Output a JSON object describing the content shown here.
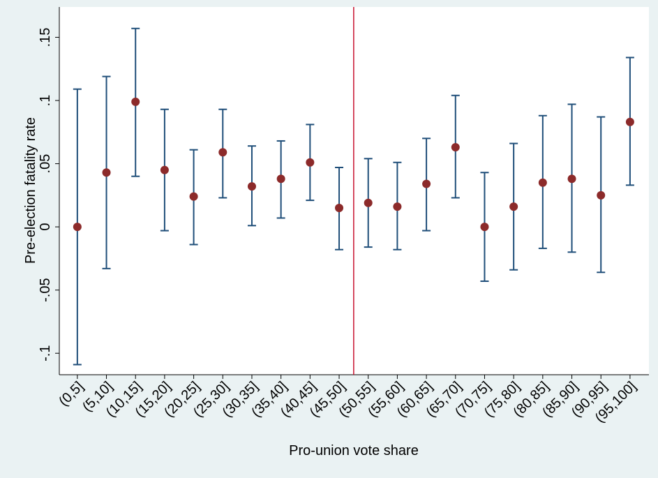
{
  "chart_data": {
    "type": "errorbar",
    "x_label": "Pro-union vote share",
    "y_label": "Pre-election fatality rate",
    "categories": [
      "(0,5]",
      "(5,10]",
      "(10,15]",
      "(15,20]",
      "(20,25]",
      "(25,30]",
      "(30,35]",
      "(35,40]",
      "(40,45]",
      "(45,50]",
      "(50,55]",
      "(55,60]",
      "(60,65]",
      "(65,70]",
      "(70,75]",
      "(75,80]",
      "(80,85]",
      "(85,90]",
      "(90,95]",
      "(95,100]"
    ],
    "values": [
      0,
      0.043,
      0.099,
      0.045,
      0.024,
      0.059,
      0.032,
      0.038,
      0.051,
      0.015,
      0.019,
      0.016,
      0.034,
      0.063,
      0,
      0.016,
      0.035,
      0.038,
      0.025,
      0.083
    ],
    "lower": [
      -0.109,
      -0.033,
      0.04,
      -0.003,
      -0.014,
      0.023,
      0.001,
      0.007,
      0.021,
      -0.018,
      -0.016,
      -0.018,
      -0.003,
      0.023,
      -0.043,
      -0.034,
      -0.017,
      -0.02,
      -0.036,
      0.033
    ],
    "upper": [
      0.109,
      0.119,
      0.157,
      0.093,
      0.061,
      0.093,
      0.064,
      0.068,
      0.081,
      0.047,
      0.054,
      0.051,
      0.07,
      0.104,
      0.043,
      0.066,
      0.088,
      0.097,
      0.087,
      0.134
    ],
    "color": "#8c2a2a",
    "bar_color": "#1f4e79",
    "xlim": [
      0.38,
      20.65
    ],
    "vline": 10.5,
    "vline_color": "#c8102e",
    "ylim": [
      -0.117,
      0.174
    ],
    "yticks": [
      {
        "value": -0.1,
        "label": "-.1"
      },
      {
        "value": -0.05,
        "label": "-.05"
      },
      0,
      {
        "value": 0.05,
        "label": ".05"
      },
      {
        "value": 0.1,
        "label": ".1"
      },
      {
        "value": 0.15,
        "label": ".15"
      }
    ]
  }
}
